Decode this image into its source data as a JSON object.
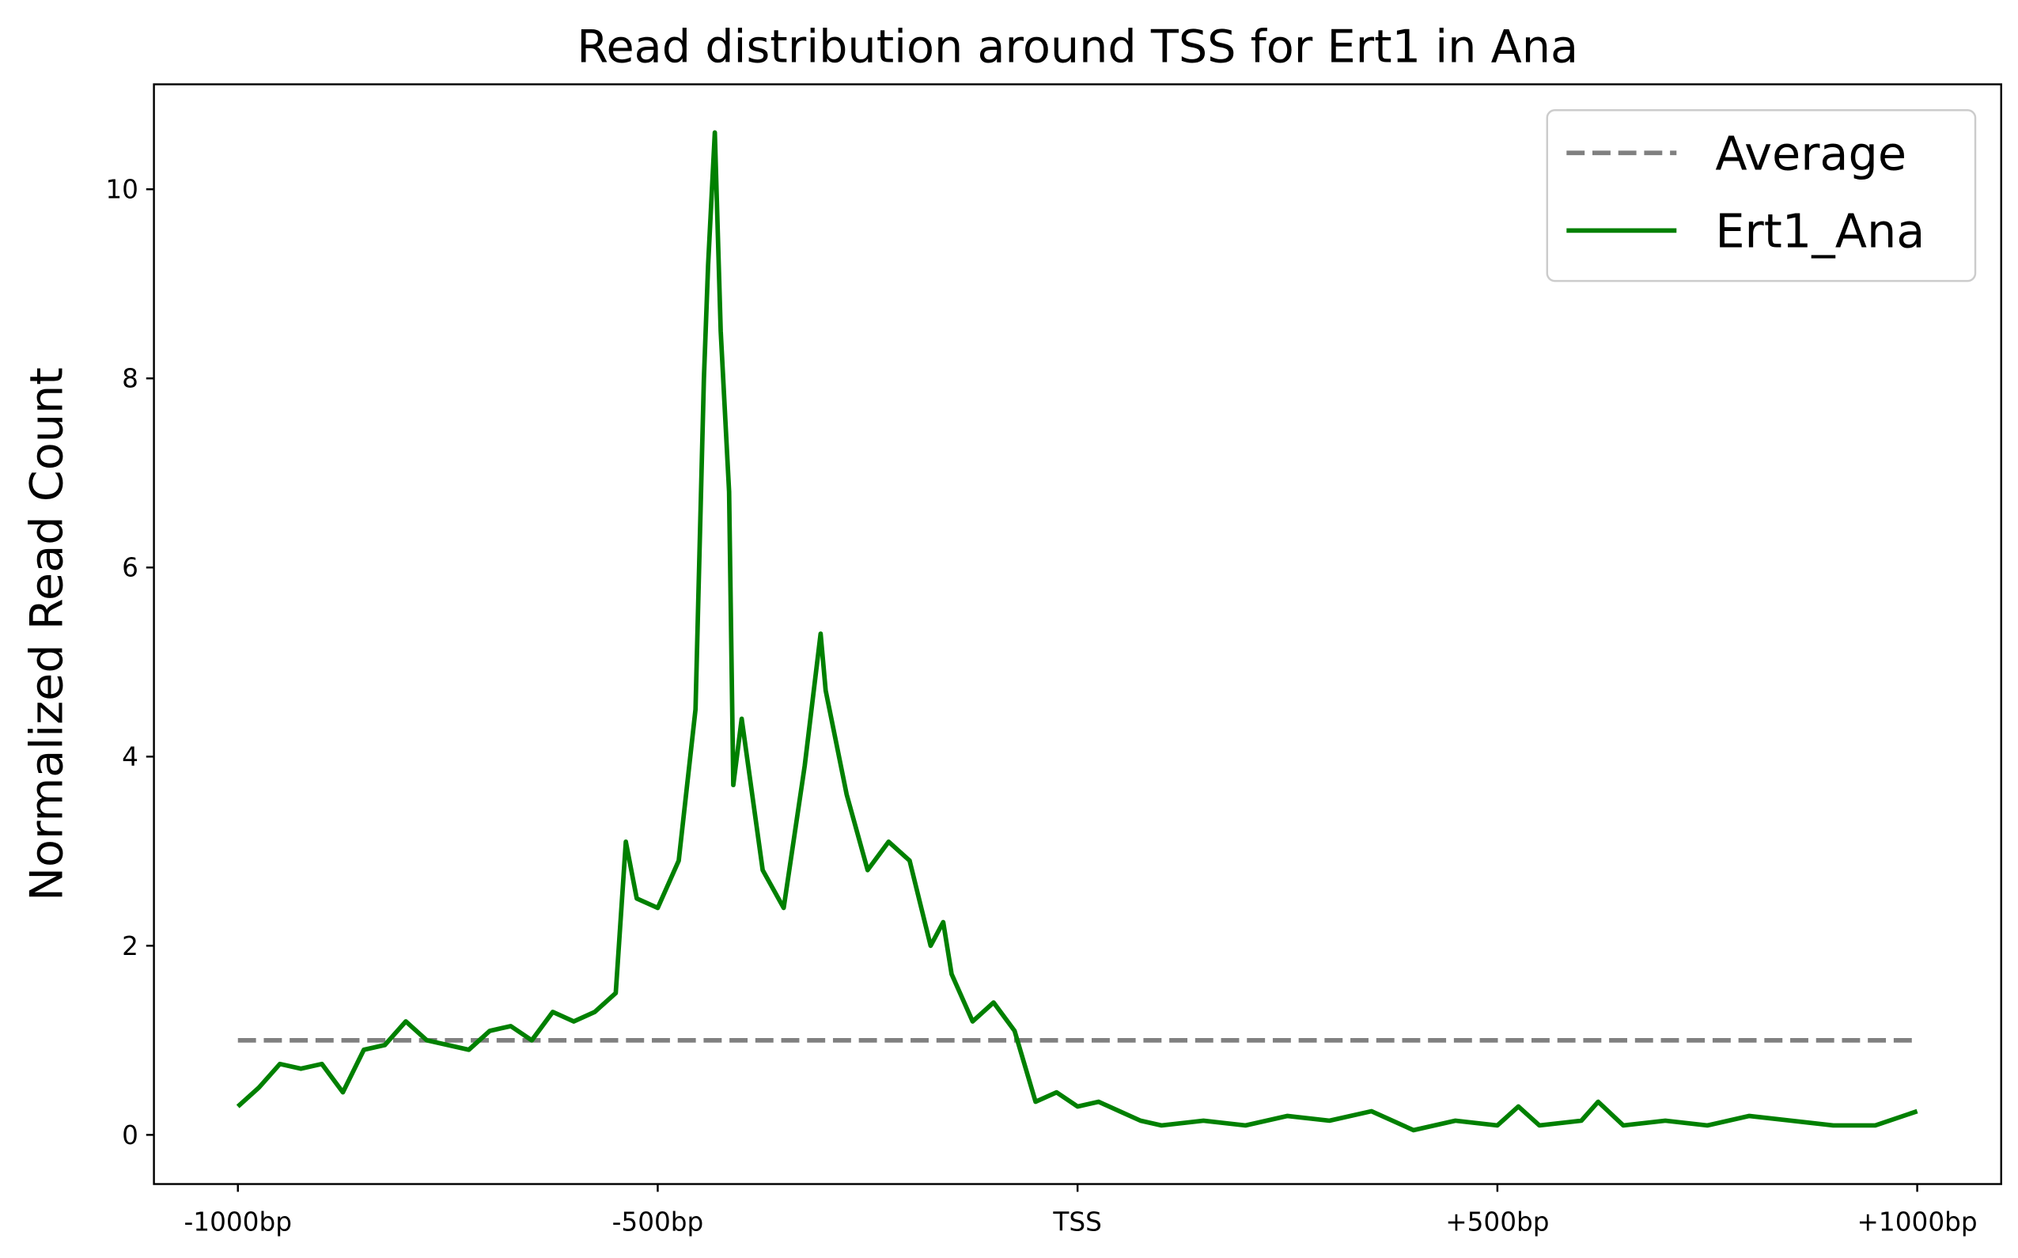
{
  "chart_data": {
    "type": "line",
    "title": "Read distribution around TSS for Ert1 in Ana",
    "y_label": "Normalized Read Count",
    "xlim": [
      -1100,
      1100
    ],
    "ylim": [
      -0.52,
      11.11
    ],
    "xticks": [
      {
        "value": -1000,
        "label": "-1000bp"
      },
      {
        "value": -500,
        "label": "-500bp"
      },
      {
        "value": 0,
        "label": "TSS"
      },
      {
        "value": 500,
        "label": "+500bp"
      },
      {
        "value": 1000,
        "label": "+1000bp"
      }
    ],
    "yticks": [
      0,
      2,
      4,
      6,
      8,
      10
    ],
    "grid": false,
    "legend": "upper right",
    "series": [
      {
        "name": "Average",
        "color": "#808080",
        "dashed": true,
        "x": [
          -1000,
          1000
        ],
        "values": [
          1,
          1
        ]
      },
      {
        "name": "Ert1_Ana",
        "color": "#008000",
        "dashed": false,
        "x": [
          -1000,
          -975,
          -950,
          -925,
          -900,
          -875,
          -850,
          -825,
          -800,
          -775,
          -750,
          -725,
          -700,
          -675,
          -650,
          -625,
          -600,
          -575,
          -550,
          -538,
          -525,
          -500,
          -475,
          -455,
          -445,
          -440,
          -432,
          -425,
          -415,
          -410,
          -400,
          -375,
          -350,
          -325,
          -306,
          -300,
          -275,
          -250,
          -225,
          -200,
          -175,
          -160,
          -150,
          -125,
          -100,
          -75,
          -50,
          -25,
          0,
          25,
          50,
          75,
          100,
          150,
          200,
          250,
          300,
          350,
          400,
          450,
          500,
          525,
          550,
          600,
          620,
          650,
          700,
          750,
          800,
          850,
          900,
          950,
          1000
        ],
        "values": [
          0.3,
          0.5,
          0.75,
          0.7,
          0.75,
          0.45,
          0.9,
          0.95,
          1.2,
          1.0,
          0.95,
          0.9,
          1.1,
          1.15,
          1.0,
          1.3,
          1.2,
          1.3,
          1.5,
          3.1,
          2.5,
          2.4,
          2.9,
          4.5,
          8.0,
          9.2,
          10.6,
          8.5,
          6.8,
          3.7,
          4.4,
          2.8,
          2.4,
          3.9,
          5.3,
          4.7,
          3.6,
          2.8,
          3.1,
          2.9,
          2.0,
          2.25,
          1.7,
          1.2,
          1.4,
          1.1,
          0.35,
          0.45,
          0.3,
          0.35,
          0.25,
          0.15,
          0.1,
          0.15,
          0.1,
          0.2,
          0.15,
          0.25,
          0.05,
          0.15,
          0.1,
          0.3,
          0.1,
          0.15,
          0.35,
          0.1,
          0.15,
          0.1,
          0.2,
          0.15,
          0.1,
          0.1,
          0.25
        ]
      }
    ]
  }
}
